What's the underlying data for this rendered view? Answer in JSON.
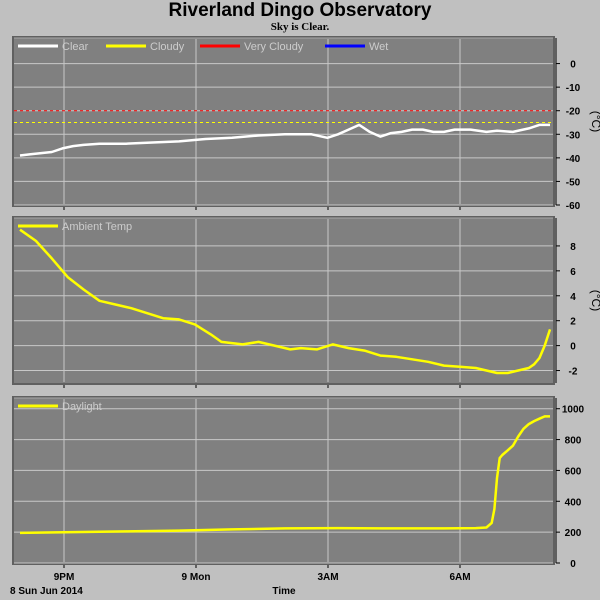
{
  "title": "Riverland Dingo Observatory",
  "subtitle": "Sky is Clear.",
  "bottom_left_label": "8 Sun Jun 2014",
  "x_axis_label": "Time",
  "x_ticks": [
    "9PM",
    "9 Mon",
    "3AM",
    "6AM"
  ],
  "colors": {
    "panel": "#808080",
    "grid": "#c8c8c8",
    "clear": "#ffffff",
    "cloudy": "#ffff00",
    "very_cloudy": "#ff0000",
    "wet": "#0000ff",
    "ambient": "#ffff00",
    "daylight": "#ffff00"
  },
  "chart_data": [
    {
      "type": "line",
      "legend": [
        "Clear",
        "Cloudy",
        "Very Cloudy",
        "Wet"
      ],
      "unit_label": "(°C)",
      "ylim": [
        -60,
        10
      ],
      "yticks": [
        0,
        -10,
        -20,
        -30,
        -40,
        -50,
        -60
      ],
      "grid": true,
      "thresholds": [
        {
          "name": "Very Cloudy",
          "value": -20
        },
        {
          "name": "Cloudy",
          "value": -25
        }
      ],
      "series": [
        {
          "name": "Clear",
          "x": [
            0,
            0.02,
            0.04,
            0.06,
            0.08,
            0.1,
            0.12,
            0.15,
            0.2,
            0.25,
            0.3,
            0.35,
            0.4,
            0.45,
            0.5,
            0.55,
            0.58,
            0.6,
            0.62,
            0.64,
            0.66,
            0.68,
            0.7,
            0.72,
            0.74,
            0.76,
            0.78,
            0.8,
            0.82,
            0.85,
            0.88,
            0.9,
            0.93,
            0.96,
            0.98,
            1.0
          ],
          "y": [
            -39,
            -38.5,
            -38,
            -37.5,
            -36,
            -35,
            -34.5,
            -34,
            -34,
            -33.5,
            -33,
            -32,
            -31.5,
            -30.5,
            -30,
            -30,
            -31.5,
            -30,
            -28,
            -26,
            -29,
            -31,
            -29.5,
            -29,
            -28,
            -28,
            -29,
            -29,
            -28,
            -28,
            -29,
            -28.5,
            -29,
            -27.5,
            -26,
            -26
          ]
        }
      ]
    },
    {
      "type": "line",
      "legend": [
        "Ambient Temp"
      ],
      "unit_label": "(°C)",
      "ylim": [
        -3,
        10
      ],
      "yticks": [
        8,
        6,
        4,
        2,
        0,
        -2
      ],
      "grid": true,
      "series": [
        {
          "name": "Ambient Temp",
          "x": [
            0,
            0.03,
            0.06,
            0.09,
            0.12,
            0.15,
            0.18,
            0.21,
            0.24,
            0.27,
            0.3,
            0.33,
            0.36,
            0.38,
            0.4,
            0.42,
            0.45,
            0.48,
            0.51,
            0.53,
            0.56,
            0.59,
            0.62,
            0.65,
            0.68,
            0.71,
            0.74,
            0.77,
            0.8,
            0.83,
            0.86,
            0.88,
            0.9,
            0.92,
            0.94,
            0.96,
            0.97,
            0.98,
            0.99,
            1.0
          ],
          "y": [
            9.3,
            8.4,
            7.0,
            5.5,
            4.5,
            3.6,
            3.3,
            3.0,
            2.6,
            2.2,
            2.1,
            1.7,
            0.9,
            0.3,
            0.2,
            0.1,
            0.3,
            0.0,
            -0.3,
            -0.2,
            -0.3,
            0.1,
            -0.2,
            -0.4,
            -0.8,
            -0.9,
            -1.1,
            -1.3,
            -1.6,
            -1.7,
            -1.8,
            -2.0,
            -2.2,
            -2.2,
            -2.0,
            -1.8,
            -1.5,
            -1.0,
            0.0,
            1.3
          ]
        }
      ]
    },
    {
      "type": "line",
      "legend": [
        "Daylight"
      ],
      "ylim": [
        0,
        1050
      ],
      "yticks": [
        1000,
        800,
        600,
        400,
        200,
        0
      ],
      "grid": true,
      "series": [
        {
          "name": "Daylight",
          "x": [
            0,
            0.1,
            0.2,
            0.3,
            0.4,
            0.5,
            0.6,
            0.7,
            0.8,
            0.86,
            0.88,
            0.89,
            0.895,
            0.9,
            0.905,
            0.91,
            0.92,
            0.93,
            0.94,
            0.95,
            0.96,
            0.97,
            0.98,
            0.99,
            1.0
          ],
          "y": [
            195,
            200,
            205,
            210,
            218,
            224,
            226,
            224,
            224,
            226,
            230,
            260,
            350,
            550,
            680,
            700,
            730,
            760,
            820,
            870,
            900,
            920,
            935,
            950,
            950
          ]
        }
      ]
    }
  ]
}
